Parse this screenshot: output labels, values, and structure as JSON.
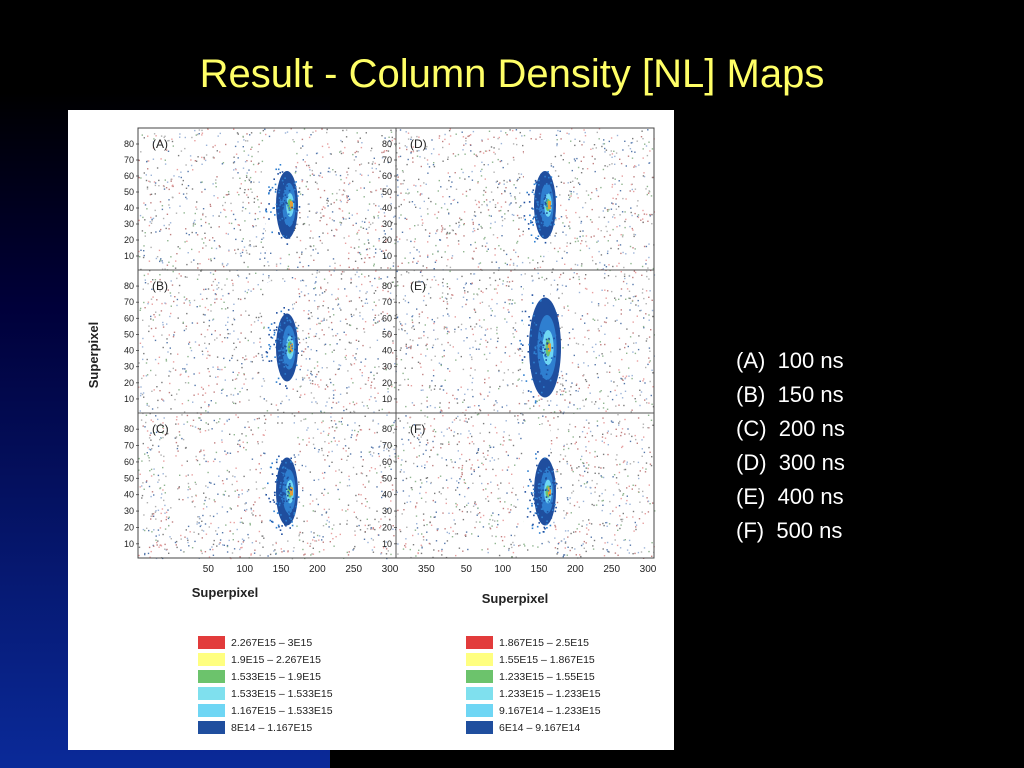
{
  "slide": {
    "title": "Result - Column Density [NL] Maps",
    "accent_color": "#ffff66"
  },
  "time_legend": [
    {
      "label": "(A)",
      "value": "100 ns"
    },
    {
      "label": "(B)",
      "value": "150 ns"
    },
    {
      "label": "(C)",
      "value": "200 ns"
    },
    {
      "label": "(D)",
      "value": "300 ns"
    },
    {
      "label": "(E)",
      "value": "400 ns"
    },
    {
      "label": "(F)",
      "value": "500 ns"
    }
  ],
  "chart_data": {
    "type": "heatmap",
    "ylabel": "Superpixel",
    "xlabel_left": "Superpixel",
    "xlabel_right": "Superpixel",
    "y_ticks": [
      10,
      20,
      30,
      40,
      50,
      60,
      70,
      80
    ],
    "x_ticks_left": [
      50,
      100,
      150,
      200,
      250,
      300,
      350
    ],
    "x_ticks_right": [
      50,
      100,
      150,
      200,
      250,
      300
    ],
    "panels": [
      {
        "id": "A",
        "label": "(A)",
        "column": "left",
        "row": 0
      },
      {
        "id": "B",
        "label": "(B)",
        "column": "left",
        "row": 1
      },
      {
        "id": "C",
        "label": "(C)",
        "column": "left",
        "row": 2
      },
      {
        "id": "D",
        "label": "(D)",
        "column": "right",
        "row": 0
      },
      {
        "id": "E",
        "label": "(E)",
        "column": "right",
        "row": 1
      },
      {
        "id": "F",
        "label": "(F)",
        "column": "right",
        "row": 2
      }
    ],
    "colorbar_left": [
      {
        "range": "2.267E15  –  3E15",
        "color": "#e23b3b"
      },
      {
        "range": "1.9E15  –  2.267E15",
        "color": "#ffff80"
      },
      {
        "range": "1.533E15  –  1.9E15",
        "color": "#6cc36c"
      },
      {
        "range": "1.533E15  –  1.533E15",
        "color": "#7fe0ee"
      },
      {
        "range": "1.167E15  –  1.533E15",
        "color": "#6fd6f4"
      },
      {
        "range": "8E14  –  1.167E15",
        "color": "#1f4e9e"
      }
    ],
    "colorbar_right": [
      {
        "range": "1.867E15  –  2.5E15",
        "color": "#e23b3b"
      },
      {
        "range": "1.55E15  –  1.867E15",
        "color": "#ffff80"
      },
      {
        "range": "1.233E15  –  1.55E15",
        "color": "#6cc36c"
      },
      {
        "range": "1.233E15  –  1.233E15",
        "color": "#7fe0ee"
      },
      {
        "range": "9.167E14  –  1.233E15",
        "color": "#6fd6f4"
      },
      {
        "range": "6E14  –  9.167E14",
        "color": "#1f4e9e"
      }
    ]
  }
}
